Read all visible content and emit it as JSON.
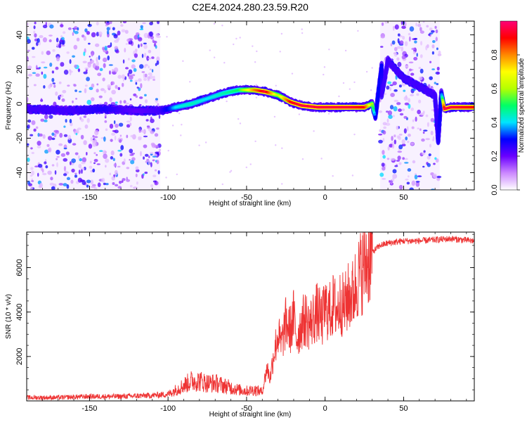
{
  "title": "C2E4.2024.280.23.59.R20",
  "colorbar": {
    "label": "Normalized spectral amplitude",
    "ticks": [
      0.0,
      0.2,
      0.4,
      0.6,
      0.8
    ],
    "range": [
      0,
      1
    ],
    "colors": [
      "#ffffff",
      "#cc88ff",
      "#6a00ff",
      "#0000ff",
      "#00e5ff",
      "#00ff66",
      "#b5ff00",
      "#ffff00",
      "#ff8800",
      "#ff0000",
      "#ff0077"
    ]
  },
  "chart_data": [
    {
      "type": "heatmap",
      "xlabel": "Height of straight line (km)",
      "ylabel": "Frequency (Hz)",
      "xlim": [
        -190,
        95
      ],
      "ylim": [
        -50,
        48
      ],
      "x_ticks": [
        -150,
        -100,
        -50,
        0,
        50
      ],
      "y_ticks": [
        -40,
        -20,
        0,
        20,
        40
      ],
      "noise_bands": [
        [
          -190,
          -105
        ],
        [
          35,
          73
        ]
      ],
      "ridge": {
        "x": [
          -190,
          -160,
          -140,
          -120,
          -105,
          -95,
          -85,
          -75,
          -65,
          -55,
          -45,
          -38,
          -30,
          -22,
          -15,
          -5,
          5,
          15,
          25,
          30,
          32,
          36,
          36,
          40,
          50,
          60,
          70,
          72,
          74,
          76,
          80,
          95
        ],
        "y": [
          -3,
          -4,
          -3,
          -4,
          -4,
          -2,
          0,
          3,
          6,
          8,
          8,
          7,
          5,
          1,
          -1,
          -2,
          -2,
          -2,
          -2,
          0,
          -8,
          22,
          5,
          25,
          15,
          10,
          5,
          -22,
          6,
          -3,
          -2,
          -2
        ],
        "amplitude": [
          0.2,
          0.2,
          0.25,
          0.15,
          0.2,
          0.4,
          0.45,
          0.4,
          0.45,
          0.5,
          0.8,
          0.95,
          0.6,
          0.9,
          0.95,
          0.95,
          0.95,
          0.95,
          0.9,
          0.6,
          0.3,
          0.3,
          0.2,
          0.2,
          0.2,
          0.2,
          0.2,
          0.25,
          0.3,
          0.95,
          0.95,
          0.9
        ]
      }
    },
    {
      "type": "line",
      "xlabel": "Height of straight line (km)",
      "ylabel": "SNR (10 * v/v)",
      "xlim": [
        -190,
        95
      ],
      "ylim": [
        0,
        7600
      ],
      "x_ticks": [
        -150,
        -100,
        -50,
        0,
        50
      ],
      "y_ticks": [
        2000,
        4000,
        6000
      ],
      "color": "#ee3333",
      "x": [
        -190,
        -170,
        -150,
        -130,
        -110,
        -100,
        -95,
        -90,
        -85,
        -80,
        -75,
        -70,
        -65,
        -60,
        -55,
        -50,
        -45,
        -40,
        -37,
        -35,
        -33,
        -30,
        -28,
        -25,
        -22,
        -20,
        -18,
        -15,
        -12,
        -10,
        -7,
        -5,
        -2,
        0,
        3,
        5,
        8,
        10,
        12,
        15,
        18,
        20,
        25,
        30,
        35,
        40,
        50,
        60,
        70,
        80,
        95
      ],
      "y": [
        150,
        150,
        200,
        200,
        250,
        300,
        500,
        700,
        900,
        900,
        800,
        800,
        700,
        600,
        500,
        450,
        500,
        400,
        1500,
        1000,
        2000,
        3000,
        2500,
        3500,
        3200,
        3800,
        2800,
        3500,
        3700,
        3400,
        3800,
        4000,
        3600,
        4200,
        4000,
        4300,
        4100,
        4500,
        4200,
        4700,
        4800,
        5400,
        6100,
        6700,
        7000,
        7100,
        7200,
        7200,
        7250,
        7300,
        7200
      ]
    }
  ]
}
